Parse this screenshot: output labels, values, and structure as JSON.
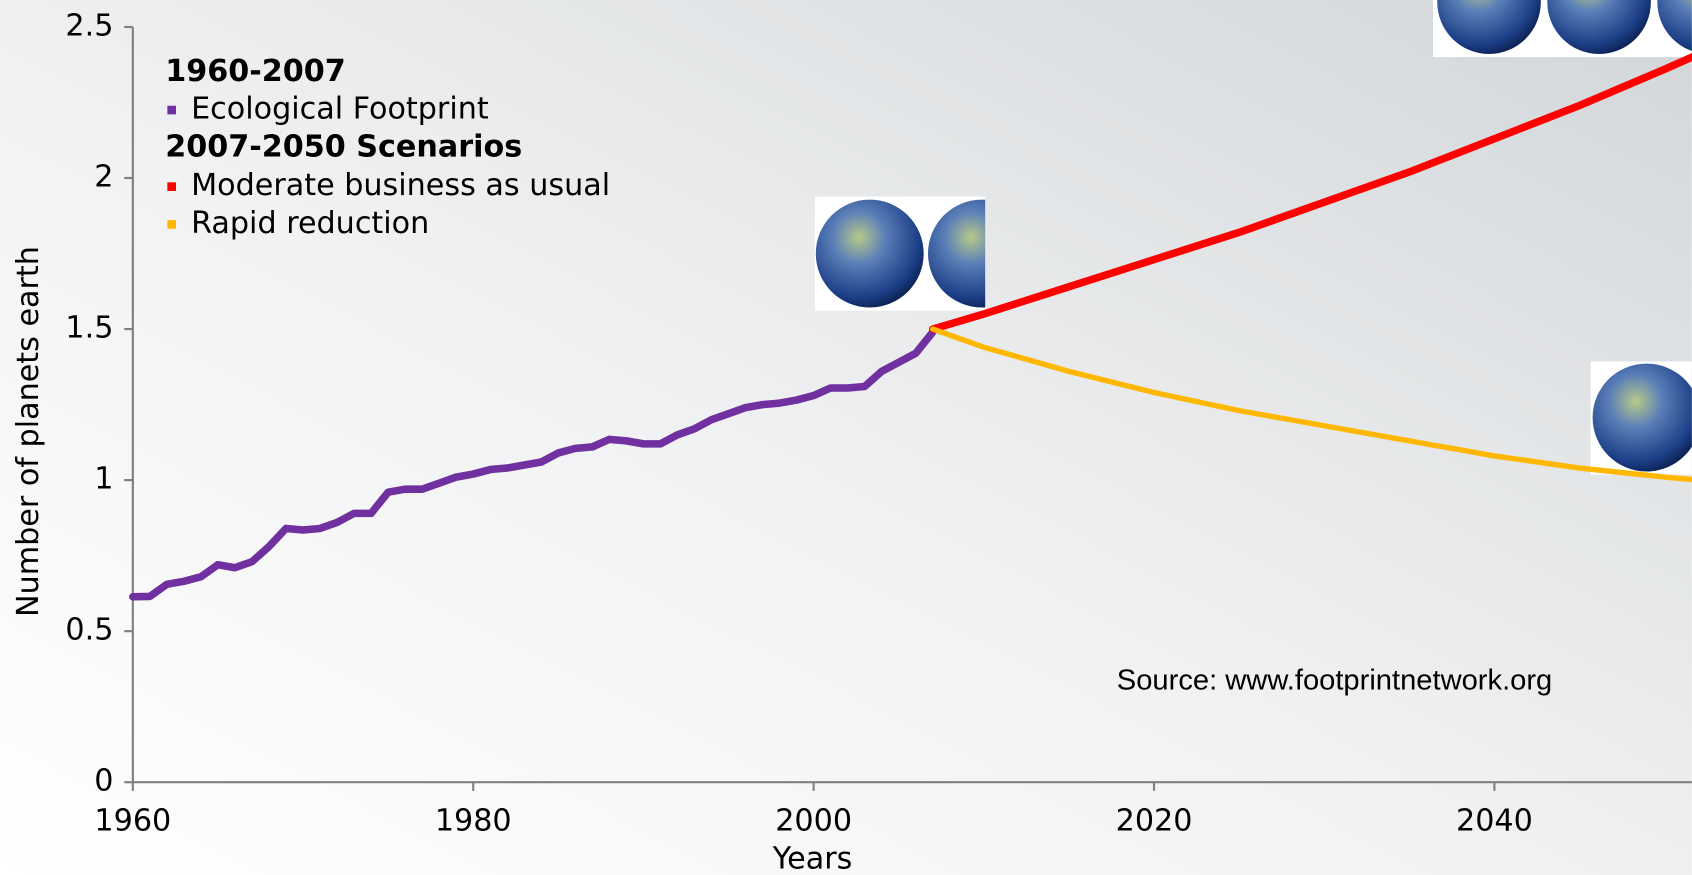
{
  "chart_data": {
    "type": "line",
    "x_label": "Years",
    "y_label": "Number of planets earth",
    "legend_groups": [
      "1960-2007",
      "2007-2050 Scenarios"
    ],
    "annotation": "Source: www.footprintnetwork.org",
    "xlim": [
      1960,
      2052
    ],
    "xticks": [
      1960,
      1980,
      2000,
      2020,
      2040
    ],
    "ylim": [
      0,
      2.5
    ],
    "yticks": [
      0,
      0.5,
      1,
      1.5,
      2,
      2.5
    ],
    "series": [
      {
        "name": "Ecological Footprint",
        "color": "#7030a0",
        "x": [
          1960,
          1961,
          1962,
          1963,
          1964,
          1965,
          1966,
          1967,
          1968,
          1969,
          1970,
          1971,
          1972,
          1973,
          1974,
          1975,
          1976,
          1977,
          1978,
          1979,
          1980,
          1981,
          1982,
          1983,
          1984,
          1985,
          1986,
          1987,
          1988,
          1989,
          1990,
          1991,
          1992,
          1993,
          1994,
          1995,
          1996,
          1997,
          1998,
          1999,
          2000,
          2001,
          2002,
          2003,
          2004,
          2005,
          2006,
          2007
        ],
        "values": [
          0.614,
          0.615,
          0.655,
          0.665,
          0.68,
          0.72,
          0.71,
          0.73,
          0.78,
          0.84,
          0.835,
          0.84,
          0.86,
          0.89,
          0.89,
          0.96,
          0.97,
          0.97,
          0.99,
          1.01,
          1.02,
          1.035,
          1.04,
          1.05,
          1.06,
          1.09,
          1.105,
          1.11,
          1.135,
          1.13,
          1.12,
          1.12,
          1.15,
          1.17,
          1.2,
          1.22,
          1.24,
          1.25,
          1.255,
          1.265,
          1.28,
          1.305,
          1.305,
          1.31,
          1.36,
          1.39,
          1.42,
          1.49
        ]
      },
      {
        "name": "Moderate business as usual",
        "color": "#ff0000",
        "x": [
          2007,
          2010,
          2015,
          2020,
          2025,
          2030,
          2035,
          2040,
          2045,
          2050,
          2052
        ],
        "values": [
          1.5,
          1.55,
          1.64,
          1.73,
          1.82,
          1.92,
          2.02,
          2.13,
          2.24,
          2.36,
          2.41
        ]
      },
      {
        "name": "Rapid reduction",
        "color": "#ffb700",
        "x": [
          2007,
          2010,
          2015,
          2020,
          2025,
          2030,
          2035,
          2040,
          2045,
          2050,
          2052
        ],
        "values": [
          1.5,
          1.44,
          1.36,
          1.29,
          1.23,
          1.18,
          1.13,
          1.08,
          1.04,
          1.01,
          1.0
        ]
      }
    ]
  }
}
